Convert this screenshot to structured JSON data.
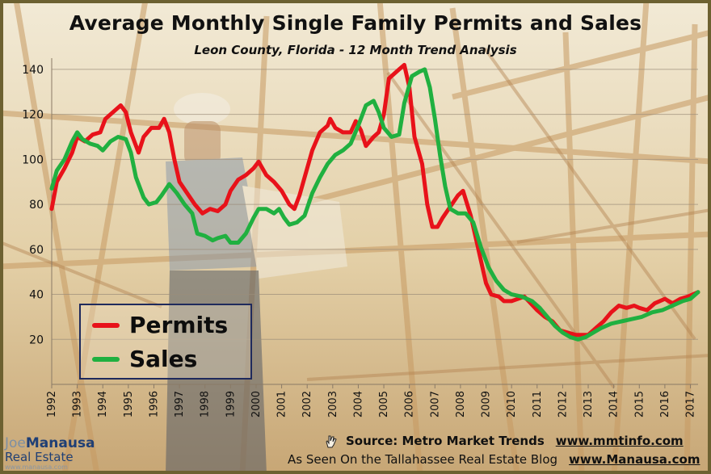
{
  "chart_data": {
    "type": "line",
    "title": "Average Monthly Single Family Permits and Sales",
    "subtitle": "Leon County, Florida - 12 Month Trend Analysis",
    "xlabel": "",
    "ylabel": "",
    "xlim": [
      1992,
      2017.3
    ],
    "ylim": [
      0,
      145
    ],
    "yticks": [
      20,
      40,
      60,
      80,
      100,
      120,
      140
    ],
    "xticks": [
      "1992",
      "1993",
      "1994",
      "1995",
      "1996",
      "1997",
      "1998",
      "1999",
      "2000",
      "2001",
      "2002",
      "2003",
      "2004",
      "2005",
      "2006",
      "2007",
      "2008",
      "2009",
      "2010",
      "2011",
      "2012",
      "2013",
      "2014",
      "2015",
      "2016",
      "2017"
    ],
    "grid": "horizontal",
    "legend_position": "bottom-left",
    "series": [
      {
        "name": "Permits",
        "color": "#e8121a",
        "points": [
          [
            1992.0,
            78
          ],
          [
            1992.2,
            90
          ],
          [
            1992.5,
            96
          ],
          [
            1992.8,
            103
          ],
          [
            1993.0,
            110
          ],
          [
            1993.3,
            108
          ],
          [
            1993.6,
            111
          ],
          [
            1993.9,
            112
          ],
          [
            1994.1,
            118
          ],
          [
            1994.4,
            121
          ],
          [
            1994.7,
            124
          ],
          [
            1994.9,
            121
          ],
          [
            1995.1,
            112
          ],
          [
            1995.4,
            103
          ],
          [
            1995.6,
            110
          ],
          [
            1995.9,
            114
          ],
          [
            1996.2,
            114
          ],
          [
            1996.4,
            118
          ],
          [
            1996.6,
            112
          ],
          [
            1996.8,
            100
          ],
          [
            1997.0,
            90
          ],
          [
            1997.3,
            85
          ],
          [
            1997.6,
            80
          ],
          [
            1997.9,
            76
          ],
          [
            1998.2,
            78
          ],
          [
            1998.5,
            77
          ],
          [
            1998.8,
            80
          ],
          [
            1999.0,
            86
          ],
          [
            1999.3,
            91
          ],
          [
            1999.6,
            93
          ],
          [
            1999.9,
            96
          ],
          [
            2000.1,
            99
          ],
          [
            2000.4,
            93
          ],
          [
            2000.7,
            90
          ],
          [
            2001.0,
            86
          ],
          [
            2001.3,
            80
          ],
          [
            2001.5,
            78
          ],
          [
            2001.7,
            84
          ],
          [
            2001.9,
            92
          ],
          [
            2002.2,
            104
          ],
          [
            2002.5,
            112
          ],
          [
            2002.8,
            115
          ],
          [
            2002.9,
            118
          ],
          [
            2003.1,
            114
          ],
          [
            2003.4,
            112
          ],
          [
            2003.7,
            112
          ],
          [
            2003.9,
            117
          ],
          [
            2004.1,
            113
          ],
          [
            2004.3,
            106
          ],
          [
            2004.6,
            110
          ],
          [
            2004.8,
            112
          ],
          [
            2005.0,
            120
          ],
          [
            2005.2,
            136
          ],
          [
            2005.4,
            138
          ],
          [
            2005.6,
            140
          ],
          [
            2005.8,
            142
          ],
          [
            2006.0,
            132
          ],
          [
            2006.2,
            110
          ],
          [
            2006.5,
            98
          ],
          [
            2006.7,
            80
          ],
          [
            2006.9,
            70
          ],
          [
            2007.1,
            70
          ],
          [
            2007.3,
            74
          ],
          [
            2007.6,
            79
          ],
          [
            2007.9,
            84
          ],
          [
            2008.1,
            86
          ],
          [
            2008.4,
            75
          ],
          [
            2008.7,
            60
          ],
          [
            2009.0,
            45
          ],
          [
            2009.2,
            40
          ],
          [
            2009.5,
            39
          ],
          [
            2009.7,
            37
          ],
          [
            2010.0,
            37
          ],
          [
            2010.5,
            39
          ],
          [
            2011.0,
            33
          ],
          [
            2011.3,
            30
          ],
          [
            2011.6,
            28
          ],
          [
            2011.9,
            24
          ],
          [
            2012.2,
            23
          ],
          [
            2012.5,
            22
          ],
          [
            2012.8,
            22
          ],
          [
            2013.0,
            22
          ],
          [
            2013.3,
            25
          ],
          [
            2013.6,
            28
          ],
          [
            2013.9,
            32
          ],
          [
            2014.2,
            35
          ],
          [
            2014.5,
            34
          ],
          [
            2014.8,
            35
          ],
          [
            2015.0,
            34
          ],
          [
            2015.3,
            33
          ],
          [
            2015.6,
            36
          ],
          [
            2016.0,
            38
          ],
          [
            2016.3,
            36
          ],
          [
            2016.6,
            38
          ],
          [
            2016.9,
            39
          ],
          [
            2017.1,
            40
          ],
          [
            2017.3,
            41
          ]
        ]
      },
      {
        "name": "Sales",
        "color": "#20b040",
        "points": [
          [
            1992.0,
            87
          ],
          [
            1992.2,
            95
          ],
          [
            1992.5,
            100
          ],
          [
            1992.8,
            108
          ],
          [
            1993.0,
            112
          ],
          [
            1993.2,
            109
          ],
          [
            1993.5,
            107
          ],
          [
            1993.8,
            106
          ],
          [
            1994.0,
            104
          ],
          [
            1994.3,
            108
          ],
          [
            1994.6,
            110
          ],
          [
            1994.9,
            109
          ],
          [
            1995.1,
            103
          ],
          [
            1995.3,
            92
          ],
          [
            1995.6,
            83
          ],
          [
            1995.8,
            80
          ],
          [
            1996.1,
            81
          ],
          [
            1996.3,
            84
          ],
          [
            1996.6,
            89
          ],
          [
            1996.9,
            85
          ],
          [
            1997.2,
            80
          ],
          [
            1997.5,
            76
          ],
          [
            1997.7,
            67
          ],
          [
            1998.0,
            66
          ],
          [
            1998.3,
            64
          ],
          [
            1998.5,
            65
          ],
          [
            1998.8,
            66
          ],
          [
            1999.0,
            63
          ],
          [
            1999.3,
            63
          ],
          [
            1999.6,
            67
          ],
          [
            1999.9,
            74
          ],
          [
            2000.1,
            78
          ],
          [
            2000.4,
            78
          ],
          [
            2000.7,
            76
          ],
          [
            2000.9,
            78
          ],
          [
            2001.1,
            74
          ],
          [
            2001.3,
            71
          ],
          [
            2001.6,
            72
          ],
          [
            2001.9,
            75
          ],
          [
            2002.2,
            85
          ],
          [
            2002.5,
            92
          ],
          [
            2002.8,
            98
          ],
          [
            2003.1,
            102
          ],
          [
            2003.4,
            104
          ],
          [
            2003.7,
            107
          ],
          [
            2004.0,
            115
          ],
          [
            2004.3,
            124
          ],
          [
            2004.6,
            126
          ],
          [
            2004.8,
            121
          ],
          [
            2005.0,
            114
          ],
          [
            2005.3,
            110
          ],
          [
            2005.6,
            111
          ],
          [
            2005.8,
            125
          ],
          [
            2006.1,
            137
          ],
          [
            2006.4,
            139
          ],
          [
            2006.6,
            140
          ],
          [
            2006.8,
            132
          ],
          [
            2007.0,
            118
          ],
          [
            2007.2,
            102
          ],
          [
            2007.4,
            88
          ],
          [
            2007.6,
            78
          ],
          [
            2007.9,
            76
          ],
          [
            2008.2,
            76
          ],
          [
            2008.5,
            72
          ],
          [
            2008.8,
            61
          ],
          [
            2009.1,
            52
          ],
          [
            2009.4,
            46
          ],
          [
            2009.7,
            42
          ],
          [
            2010.0,
            40
          ],
          [
            2010.4,
            39
          ],
          [
            2010.8,
            37
          ],
          [
            2011.1,
            34
          ],
          [
            2011.4,
            30
          ],
          [
            2011.7,
            26
          ],
          [
            2012.0,
            23
          ],
          [
            2012.3,
            21
          ],
          [
            2012.6,
            20
          ],
          [
            2012.9,
            21
          ],
          [
            2013.2,
            23
          ],
          [
            2013.5,
            25
          ],
          [
            2013.9,
            27
          ],
          [
            2014.3,
            28
          ],
          [
            2014.7,
            29
          ],
          [
            2015.1,
            30
          ],
          [
            2015.5,
            32
          ],
          [
            2015.9,
            33
          ],
          [
            2016.3,
            35
          ],
          [
            2016.7,
            37
          ],
          [
            2017.0,
            38
          ],
          [
            2017.2,
            40
          ],
          [
            2017.3,
            41
          ]
        ]
      }
    ]
  },
  "legend": {
    "permits_label": "Permits",
    "sales_label": "Sales"
  },
  "footer": {
    "source_text": "Source: Metro Market Trends",
    "source_url": "www.mmtinfo.com",
    "seen_text": "As Seen On the Tallahassee Real Estate Blog",
    "seen_url": "www.Manausa.com",
    "hand_icon": "pointing-hand-icon"
  },
  "logo": {
    "joe": "Joe",
    "manausa": "Manausa",
    "real_estate": "Real Estate",
    "url": "www.manausa.com"
  }
}
